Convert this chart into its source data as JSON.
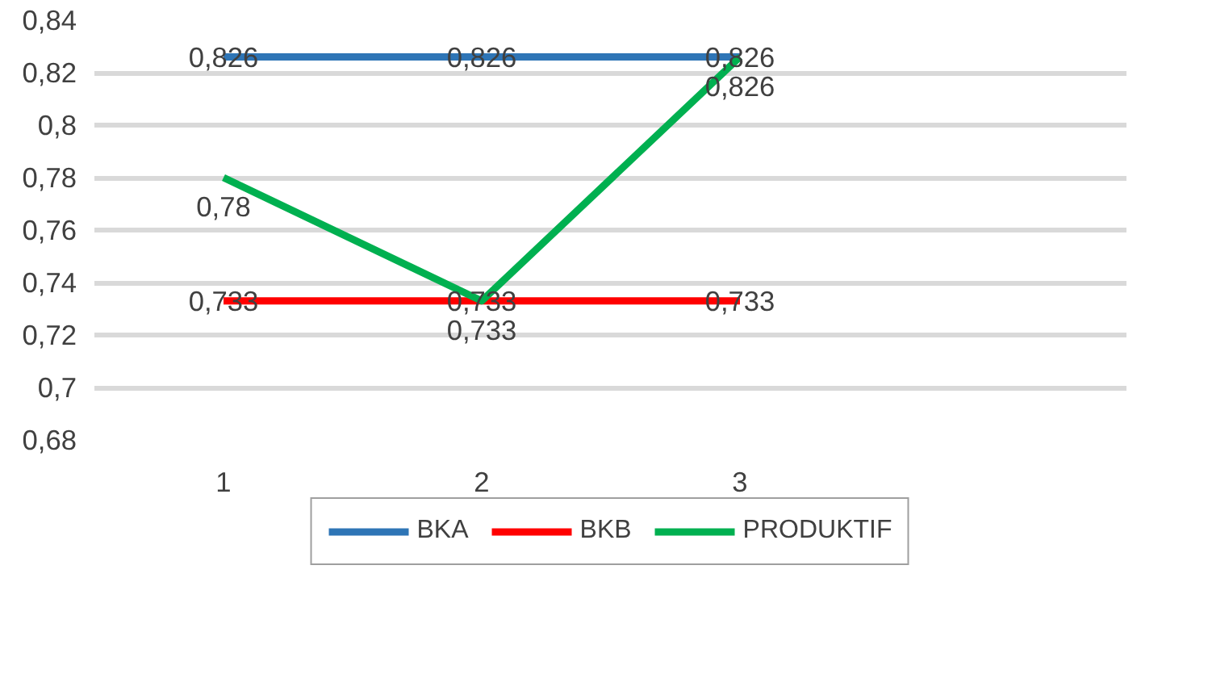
{
  "chart_data": {
    "type": "line",
    "categories": [
      "1",
      "2",
      "3",
      null
    ],
    "series": [
      {
        "name": "BKA",
        "color": "#2e75b6",
        "values": [
          0.826,
          0.826,
          0.826,
          null
        ],
        "value_labels": [
          "0,826",
          "0,826",
          "0,826",
          null
        ]
      },
      {
        "name": "BKB",
        "color": "#ff0000",
        "values": [
          0.733,
          0.733,
          0.733,
          null
        ],
        "value_labels": [
          "0,733",
          "0,733",
          "0,733",
          null
        ]
      },
      {
        "name": "PRODUKTIF",
        "color": "#00b050",
        "values": [
          0.78,
          0.733,
          0.826,
          null
        ],
        "value_labels": [
          "0,78",
          "0,733",
          "0,826",
          null
        ]
      }
    ],
    "ylim": [
      0.68,
      0.84
    ],
    "yticks": [
      {
        "value": 0.68,
        "label": "0,68"
      },
      {
        "value": 0.7,
        "label": "0,7"
      },
      {
        "value": 0.72,
        "label": "0,72"
      },
      {
        "value": 0.74,
        "label": "0,74"
      },
      {
        "value": 0.76,
        "label": "0,76"
      },
      {
        "value": 0.78,
        "label": "0,78"
      },
      {
        "value": 0.8,
        "label": "0,8"
      },
      {
        "value": 0.82,
        "label": "0,82"
      },
      {
        "value": 0.84,
        "label": "0,84"
      }
    ],
    "grid": "y",
    "legend": "bottom",
    "marker": "none",
    "line_style": "solid"
  }
}
